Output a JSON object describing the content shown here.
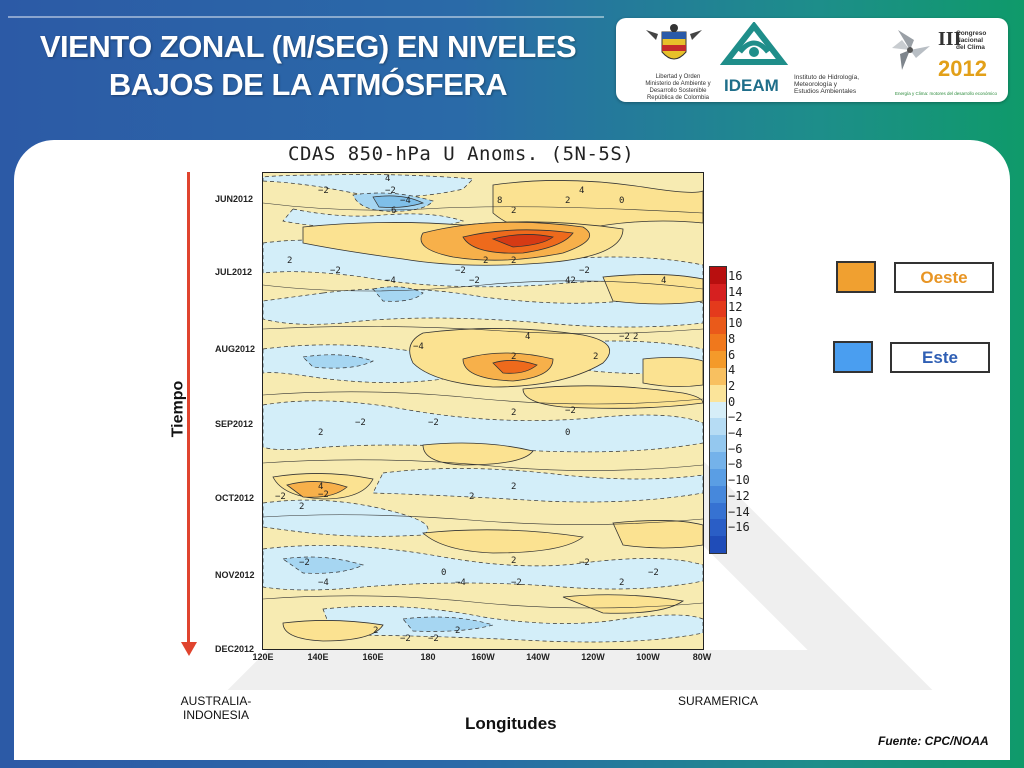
{
  "slide": {
    "title_line1": "VIENTO ZONAL (M/SEG) EN NIVELES",
    "title_line2": "BAJOS DE LA ATMÓSFERA",
    "source": "Fuente: CPC/NOAA"
  },
  "logos": {
    "ministry_text": "Libertad y Orden\nMinisterio de Ambiente y\nDesarrollo Sostenible\nRepública de Colombia",
    "ideam_name": "IDEAM",
    "ideam_text": "Instituto de Hidrología,\nMeteorología y\nEstudios Ambientales",
    "congress_numeral": "III",
    "congress_text": "Congreso\nNacional\ndel Clima",
    "congress_year": "2012",
    "congress_slogan": "Energía y Clima: motores del desarrollo económico"
  },
  "legend": {
    "west_label": "Oeste",
    "west_color": "#f0a030",
    "east_label": "Este",
    "east_color": "#4a9ef0"
  },
  "annotations": {
    "left_region": "AUSTRALIA-\nINDONESIA",
    "right_region": "SURAMERICA",
    "x_title": "Longitudes",
    "y_title": "Tiempo"
  },
  "chart_data": {
    "type": "heatmap",
    "title": "CDAS 850-hPa U Anoms. (5N-5S)",
    "xlabel": "Longitudes",
    "ylabel": "Tiempo",
    "x_ticks": [
      "120E",
      "140E",
      "160E",
      "180",
      "160W",
      "140W",
      "120W",
      "100W",
      "80W"
    ],
    "y_ticks": [
      "JUN2012",
      "JUL2012",
      "AUG2012",
      "SEP2012",
      "OCT2012",
      "NOV2012",
      "DEC2012"
    ],
    "colorbar_levels": [
      16,
      14,
      12,
      10,
      8,
      6,
      4,
      2,
      0,
      -2,
      -4,
      -6,
      -8,
      -10,
      -12,
      -14,
      -16
    ],
    "colorbar_colors": [
      "#b80f0f",
      "#d62020",
      "#e43a1c",
      "#ea5a1a",
      "#f0781c",
      "#f49a2a",
      "#f8c060",
      "#fbe49a",
      "#d6eef8",
      "#b6dcf4",
      "#94c8ef",
      "#74b2ea",
      "#5a9ee4",
      "#4688dc",
      "#3672d2",
      "#2a5ec6",
      "#1f4cb8"
    ],
    "features": [
      {
        "lon_start": "150E",
        "lon_end": "175E",
        "time": "JUN2012",
        "value": -4,
        "kind": "easterly"
      },
      {
        "lon_start": "175W",
        "lon_end": "115W",
        "time": "JUN2012",
        "value": 8,
        "kind": "westerly"
      },
      {
        "lon_start": "160W",
        "lon_end": "140W",
        "time": "AUG2012",
        "value": 6,
        "kind": "westerly"
      },
      {
        "lon_start": "125E",
        "lon_end": "145E",
        "time": "OCT2012",
        "value": 4,
        "kind": "westerly"
      },
      {
        "lon_start": "125E",
        "lon_end": "150E",
        "time": "NOV2012",
        "value": -4,
        "kind": "easterly"
      }
    ],
    "contour_labels": [
      {
        "text": "-2",
        "lon": "165E",
        "time": "JUN2012"
      },
      {
        "text": "-4",
        "lon": "170E",
        "time": "JUN2012"
      },
      {
        "text": "6",
        "lon": "167E",
        "time": "JUN2012"
      },
      {
        "text": "4",
        "lon": "165E",
        "time": "JUN2012"
      },
      {
        "text": "2",
        "lon": "130W",
        "time": "JUN2012"
      },
      {
        "text": "2",
        "lon": "150W",
        "time": "JUN2012"
      },
      {
        "text": "4",
        "lon": "125W",
        "time": "JUN2012"
      },
      {
        "text": "8",
        "lon": "155W",
        "time": "JUN2012"
      },
      {
        "text": "42",
        "lon": "130W",
        "time": "JUL2012"
      },
      {
        "text": "-2",
        "lon": "140E",
        "time": "JUN2012"
      },
      {
        "text": "0",
        "lon": "110W",
        "time": "JUN2012"
      },
      {
        "text": "-2",
        "lon": "165W",
        "time": "JUL2012"
      },
      {
        "text": "2",
        "lon": "150W",
        "time": "JUL2012"
      },
      {
        "text": "-2",
        "lon": "145E",
        "time": "JUL2012"
      },
      {
        "text": "-4",
        "lon": "165E",
        "time": "JUL2012"
      },
      {
        "text": "2",
        "lon": "160W",
        "time": "JUL2012"
      },
      {
        "text": "-2",
        "lon": "125W",
        "time": "JUL2012"
      },
      {
        "text": "4",
        "lon": "95W",
        "time": "JUL2012"
      },
      {
        "text": "2",
        "lon": "130E",
        "time": "JUL2012"
      },
      {
        "text": "-2",
        "lon": "170W",
        "time": "JUL2012"
      },
      {
        "text": "2",
        "lon": "120W",
        "time": "AUG2012"
      },
      {
        "text": "-2",
        "lon": "110W",
        "time": "AUG2012"
      },
      {
        "text": "-4",
        "lon": "175E",
        "time": "AUG2012"
      },
      {
        "text": "2",
        "lon": "150W",
        "time": "AUG2012"
      },
      {
        "text": "4",
        "lon": "145W",
        "time": "AUG2012"
      },
      {
        "text": "-2",
        "lon": "155E",
        "time": "SEP2012"
      },
      {
        "text": "2",
        "lon": "140E",
        "time": "SEP2012"
      },
      {
        "text": "2",
        "lon": "105W",
        "time": "AUG2012"
      },
      {
        "text": "-2",
        "lon": "180",
        "time": "SEP2012"
      },
      {
        "text": "0",
        "lon": "130W",
        "time": "SEP2012"
      },
      {
        "text": "2",
        "lon": "150W",
        "time": "SEP2012"
      },
      {
        "text": "-2",
        "lon": "130W",
        "time": "SEP2012"
      },
      {
        "text": "2",
        "lon": "135E",
        "time": "OCT2012"
      },
      {
        "text": "4",
        "lon": "140E",
        "time": "OCT2012"
      },
      {
        "text": "-2",
        "lon": "125E",
        "time": "OCT2012"
      },
      {
        "text": "-2",
        "lon": "140E",
        "time": "OCT2012"
      },
      {
        "text": "2",
        "lon": "150W",
        "time": "OCT2012"
      },
      {
        "text": "2",
        "lon": "165W",
        "time": "OCT2012"
      },
      {
        "text": "-4",
        "lon": "140E",
        "time": "NOV2012"
      },
      {
        "text": "-2",
        "lon": "135E",
        "time": "NOV2012"
      },
      {
        "text": "0",
        "lon": "175W",
        "time": "NOV2012"
      },
      {
        "text": "-2",
        "lon": "150W",
        "time": "NOV2012"
      },
      {
        "text": "-2",
        "lon": "125W",
        "time": "NOV2012"
      },
      {
        "text": "2",
        "lon": "150W",
        "time": "NOV2012"
      },
      {
        "text": "-4",
        "lon": "170W",
        "time": "NOV2012"
      },
      {
        "text": "2",
        "lon": "160E",
        "time": "DEC2012"
      },
      {
        "text": "-2",
        "lon": "170E",
        "time": "DEC2012"
      },
      {
        "text": "-2",
        "lon": "180",
        "time": "DEC2012"
      },
      {
        "text": "2",
        "lon": "170W",
        "time": "DEC2012"
      },
      {
        "text": "-2",
        "lon": "100W",
        "time": "NOV2012"
      },
      {
        "text": "2",
        "lon": "110W",
        "time": "NOV2012"
      }
    ]
  }
}
